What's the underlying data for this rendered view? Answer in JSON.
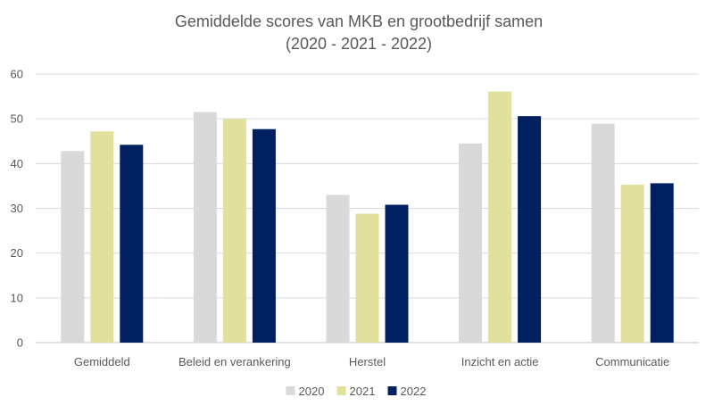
{
  "chart_data": {
    "type": "bar",
    "title": "Gemiddelde scores van MKB en grootbedrijf samen",
    "subtitle": "(2020 - 2021 - 2022)",
    "xlabel": "",
    "ylabel": "",
    "ylim": [
      0,
      60
    ],
    "yticks": [
      0,
      10,
      20,
      30,
      40,
      50,
      60
    ],
    "grid": true,
    "legend_position": "bottom",
    "categories": [
      "Gemiddeld",
      "Beleid en verankering",
      "Herstel",
      "Inzicht en actie",
      "Communicatie"
    ],
    "series": [
      {
        "name": "2020",
        "color": "#d9d9d9",
        "values": [
          42.8,
          51.5,
          33.0,
          44.5,
          48.9
        ]
      },
      {
        "name": "2021",
        "color": "#e1e09c",
        "values": [
          47.2,
          50.0,
          28.8,
          56.1,
          35.3
        ]
      },
      {
        "name": "2022",
        "color": "#002060",
        "values": [
          44.2,
          47.7,
          30.8,
          50.6,
          35.6
        ]
      }
    ]
  }
}
